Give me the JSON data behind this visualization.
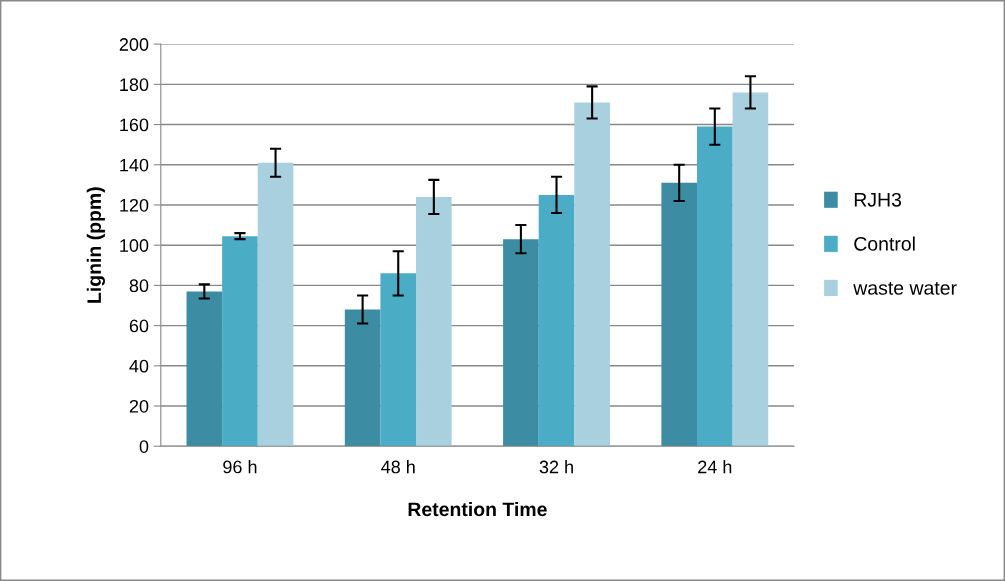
{
  "chart_data": {
    "type": "bar",
    "xlabel": "Retention Time",
    "ylabel": "Lignin (ppm)",
    "categories": [
      "96 h",
      "48 h",
      "32 h",
      "24 h"
    ],
    "series": [
      {
        "name": "RJH3",
        "color": "#3c8ca4",
        "values": [
          77,
          68,
          103,
          131
        ],
        "errors": [
          3.5,
          7,
          7,
          9
        ]
      },
      {
        "name": "Control",
        "color": "#4bacc6",
        "values": [
          104.5,
          86,
          125,
          159
        ],
        "errors": [
          1.5,
          11,
          9,
          9
        ]
      },
      {
        "name": "waste water",
        "color": "#a8d0df",
        "values": [
          141,
          124,
          171,
          176
        ],
        "errors": [
          7,
          8.5,
          8,
          8
        ]
      }
    ],
    "ylim": [
      0,
      200
    ],
    "yticks": [
      0,
      20,
      40,
      60,
      80,
      100,
      120,
      140,
      160,
      180,
      200
    ],
    "grid": "y",
    "legend": "right"
  }
}
